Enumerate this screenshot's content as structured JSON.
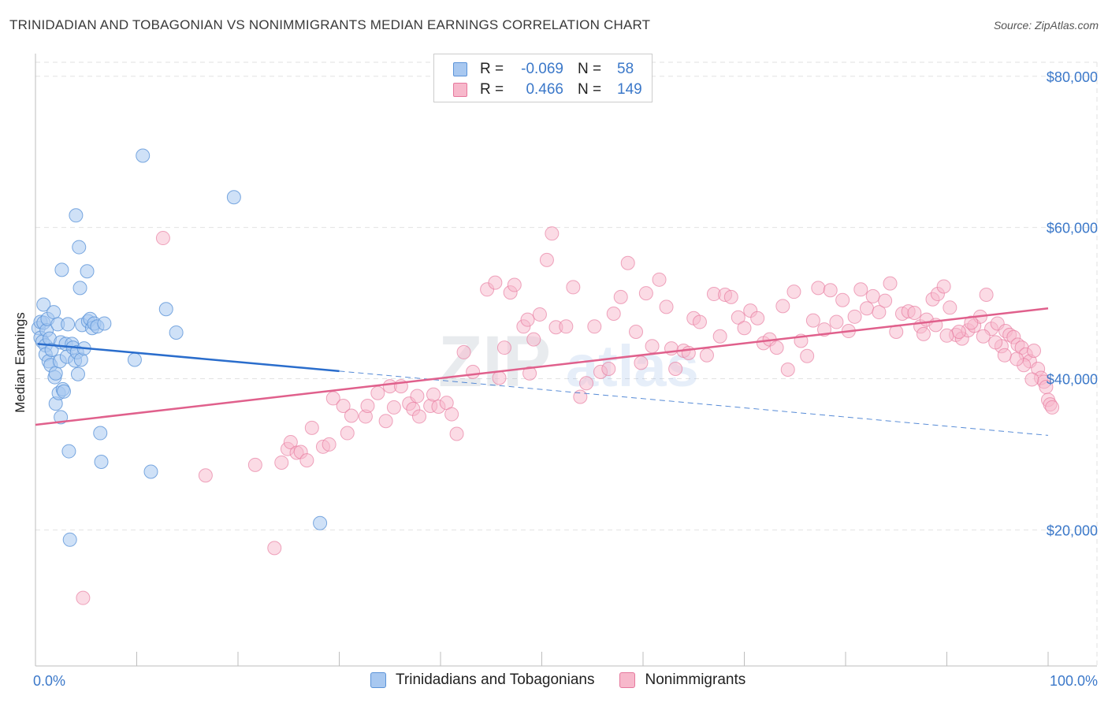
{
  "header": {
    "title": "TRINIDADIAN AND TOBAGONIAN VS NONIMMIGRANTS MEDIAN EARNINGS CORRELATION CHART",
    "source": "Source: ZipAtlas.com"
  },
  "watermark": {
    "part1": "ZIP",
    "part2": "atlas"
  },
  "legend": {
    "rows": [
      {
        "r_label": "R =",
        "r_value": "-0.069",
        "n_label": "N =",
        "n_value": "58"
      },
      {
        "r_label": "R =",
        "r_value": "0.466",
        "n_label": "N =",
        "n_value": "149"
      }
    ]
  },
  "bottom_legend": {
    "items": [
      "Trinidadians and Tobagonians",
      "Nonimmigrants"
    ]
  },
  "colors": {
    "series1_fill": "#a8c8f0",
    "series1_stroke": "#5b93d8",
    "series1_line": "#2a6dcc",
    "series2_fill": "#f7b8cb",
    "series2_stroke": "#e6789d",
    "series2_line": "#e0608c",
    "axis_label": "#3b78c9"
  },
  "chart_data": {
    "type": "scatter",
    "title": "TRINIDADIAN AND TOBAGONIAN VS NONIMMIGRANTS MEDIAN EARNINGS CORRELATION CHART",
    "xlabel": "",
    "ylabel": "Median Earnings",
    "xlim": [
      0,
      100
    ],
    "ylim": [
      2000,
      83000
    ],
    "x_tick_labels": [
      "0.0%",
      "100.0%"
    ],
    "y_ticks": [
      20000,
      40000,
      60000,
      80000
    ],
    "y_tick_labels": [
      "$20,000",
      "$40,000",
      "$60,000",
      "$80,000"
    ],
    "series": [
      {
        "name": "Trinidadians and Tobagonians",
        "r": -0.069,
        "n": 58,
        "trend": {
          "x0": 0.2,
          "y0": 44600,
          "x1": 30,
          "y1": 41000,
          "x_dash_end": 100,
          "y_dash_end": 32500
        },
        "points": [
          [
            0.3,
            46700
          ],
          [
            0.5,
            45400
          ],
          [
            0.5,
            47500
          ],
          [
            0.7,
            44900
          ],
          [
            0.8,
            49800
          ],
          [
            0.8,
            47400
          ],
          [
            1.0,
            44400
          ],
          [
            1.0,
            43200
          ],
          [
            1.1,
            46400
          ],
          [
            1.2,
            47900
          ],
          [
            1.3,
            42300
          ],
          [
            1.4,
            45300
          ],
          [
            1.5,
            41800
          ],
          [
            1.6,
            43800
          ],
          [
            1.8,
            48800
          ],
          [
            1.9,
            40200
          ],
          [
            2.0,
            40700
          ],
          [
            2.0,
            36700
          ],
          [
            2.2,
            47200
          ],
          [
            2.3,
            38100
          ],
          [
            2.4,
            42300
          ],
          [
            2.5,
            34900
          ],
          [
            2.5,
            44800
          ],
          [
            2.6,
            54400
          ],
          [
            2.7,
            38600
          ],
          [
            2.8,
            38300
          ],
          [
            3.0,
            44600
          ],
          [
            3.1,
            42900
          ],
          [
            3.2,
            47200
          ],
          [
            3.3,
            30400
          ],
          [
            3.4,
            18700
          ],
          [
            3.6,
            44600
          ],
          [
            3.7,
            44100
          ],
          [
            3.9,
            42400
          ],
          [
            4.0,
            61600
          ],
          [
            4.1,
            43500
          ],
          [
            4.2,
            40600
          ],
          [
            4.3,
            57400
          ],
          [
            4.4,
            52000
          ],
          [
            4.5,
            42500
          ],
          [
            4.6,
            47100
          ],
          [
            4.8,
            44000
          ],
          [
            5.1,
            54200
          ],
          [
            5.2,
            47600
          ],
          [
            5.4,
            47900
          ],
          [
            5.6,
            46700
          ],
          [
            5.8,
            47300
          ],
          [
            6.1,
            46900
          ],
          [
            6.4,
            32800
          ],
          [
            6.5,
            29000
          ],
          [
            6.8,
            47300
          ],
          [
            9.8,
            42500
          ],
          [
            10.6,
            69500
          ],
          [
            11.4,
            27700
          ],
          [
            12.9,
            49200
          ],
          [
            13.9,
            46100
          ],
          [
            19.6,
            64000
          ],
          [
            28.1,
            20900
          ]
        ]
      },
      {
        "name": "Nonimmigrants",
        "r": 0.466,
        "n": 149,
        "trend": {
          "x0": 0,
          "y0": 33900,
          "x1": 100,
          "y1": 49300
        },
        "points": [
          [
            4.7,
            11000
          ],
          [
            12.6,
            58600
          ],
          [
            16.8,
            27200
          ],
          [
            21.7,
            28600
          ],
          [
            23.6,
            17600
          ],
          [
            24.3,
            28900
          ],
          [
            24.9,
            30700
          ],
          [
            25.2,
            31600
          ],
          [
            25.8,
            30200
          ],
          [
            26.2,
            30300
          ],
          [
            26.8,
            29200
          ],
          [
            27.3,
            33500
          ],
          [
            28.4,
            31000
          ],
          [
            29.0,
            31300
          ],
          [
            29.4,
            37400
          ],
          [
            30.4,
            36400
          ],
          [
            30.8,
            32800
          ],
          [
            31.2,
            35100
          ],
          [
            32.6,
            35000
          ],
          [
            32.8,
            36400
          ],
          [
            33.8,
            38100
          ],
          [
            34.6,
            34400
          ],
          [
            35.0,
            39000
          ],
          [
            35.4,
            36200
          ],
          [
            36.1,
            39000
          ],
          [
            36.9,
            36700
          ],
          [
            37.3,
            36000
          ],
          [
            37.7,
            37700
          ],
          [
            37.9,
            35000
          ],
          [
            39.0,
            36400
          ],
          [
            39.3,
            37900
          ],
          [
            39.8,
            36300
          ],
          [
            40.6,
            36800
          ],
          [
            41.1,
            35300
          ],
          [
            41.6,
            32700
          ],
          [
            42.3,
            43500
          ],
          [
            43.2,
            40900
          ],
          [
            44.6,
            51800
          ],
          [
            45.4,
            52700
          ],
          [
            45.8,
            40100
          ],
          [
            46.3,
            44100
          ],
          [
            46.9,
            51400
          ],
          [
            47.3,
            52400
          ],
          [
            48.2,
            46900
          ],
          [
            48.6,
            47800
          ],
          [
            48.8,
            40700
          ],
          [
            49.2,
            45200
          ],
          [
            49.8,
            48500
          ],
          [
            50.5,
            55700
          ],
          [
            51.0,
            59200
          ],
          [
            51.4,
            46800
          ],
          [
            52.4,
            46900
          ],
          [
            53.1,
            52100
          ],
          [
            53.8,
            37600
          ],
          [
            54.4,
            39400
          ],
          [
            55.2,
            46900
          ],
          [
            55.8,
            40900
          ],
          [
            56.6,
            41300
          ],
          [
            57.1,
            48600
          ],
          [
            57.8,
            50800
          ],
          [
            58.5,
            55300
          ],
          [
            59.3,
            46200
          ],
          [
            59.8,
            42100
          ],
          [
            60.3,
            51300
          ],
          [
            60.9,
            44300
          ],
          [
            61.6,
            53100
          ],
          [
            62.3,
            49500
          ],
          [
            62.8,
            44000
          ],
          [
            63.2,
            41300
          ],
          [
            64.0,
            43700
          ],
          [
            64.5,
            43400
          ],
          [
            65.0,
            48000
          ],
          [
            65.6,
            47500
          ],
          [
            66.3,
            43100
          ],
          [
            67.0,
            51200
          ],
          [
            67.6,
            45600
          ],
          [
            68.1,
            51100
          ],
          [
            68.7,
            50800
          ],
          [
            69.4,
            48100
          ],
          [
            70.0,
            46700
          ],
          [
            70.6,
            49000
          ],
          [
            71.3,
            48000
          ],
          [
            71.9,
            44700
          ],
          [
            72.5,
            45200
          ],
          [
            73.2,
            44100
          ],
          [
            73.8,
            49600
          ],
          [
            74.3,
            41200
          ],
          [
            74.9,
            51500
          ],
          [
            75.6,
            45000
          ],
          [
            76.2,
            43000
          ],
          [
            76.8,
            47700
          ],
          [
            77.3,
            52000
          ],
          [
            77.9,
            46500
          ],
          [
            78.5,
            51700
          ],
          [
            79.1,
            47500
          ],
          [
            79.7,
            50400
          ],
          [
            80.3,
            46300
          ],
          [
            80.9,
            48200
          ],
          [
            81.5,
            51800
          ],
          [
            82.1,
            49300
          ],
          [
            82.7,
            50900
          ],
          [
            83.3,
            48800
          ],
          [
            83.9,
            50300
          ],
          [
            84.4,
            52600
          ],
          [
            85.0,
            46200
          ],
          [
            85.6,
            48600
          ],
          [
            86.2,
            48900
          ],
          [
            86.8,
            48700
          ],
          [
            87.4,
            46900
          ],
          [
            88.0,
            47800
          ],
          [
            88.6,
            50500
          ],
          [
            89.1,
            51200
          ],
          [
            89.7,
            52200
          ],
          [
            90.3,
            49400
          ],
          [
            90.9,
            45800
          ],
          [
            91.5,
            45300
          ],
          [
            92.1,
            46400
          ],
          [
            92.7,
            47000
          ],
          [
            93.3,
            48200
          ],
          [
            93.9,
            51100
          ],
          [
            94.4,
            46600
          ],
          [
            95.0,
            47300
          ],
          [
            95.4,
            44300
          ],
          [
            95.8,
            46300
          ],
          [
            96.2,
            45800
          ],
          [
            96.6,
            45500
          ],
          [
            97.0,
            44500
          ],
          [
            97.4,
            44100
          ],
          [
            97.8,
            43200
          ],
          [
            98.2,
            42300
          ],
          [
            98.6,
            43700
          ],
          [
            99.0,
            41300
          ],
          [
            99.3,
            40100
          ],
          [
            99.6,
            39600
          ],
          [
            99.8,
            38900
          ],
          [
            100.0,
            37200
          ],
          [
            100.2,
            36600
          ],
          [
            100.4,
            36200
          ],
          [
            98.4,
            39900
          ],
          [
            97.6,
            41800
          ],
          [
            96.9,
            42600
          ],
          [
            95.7,
            43100
          ],
          [
            94.8,
            44800
          ],
          [
            93.6,
            45600
          ],
          [
            92.4,
            47400
          ],
          [
            91.2,
            46200
          ],
          [
            90.0,
            45700
          ],
          [
            88.9,
            47100
          ],
          [
            87.7,
            45900
          ]
        ]
      }
    ]
  }
}
